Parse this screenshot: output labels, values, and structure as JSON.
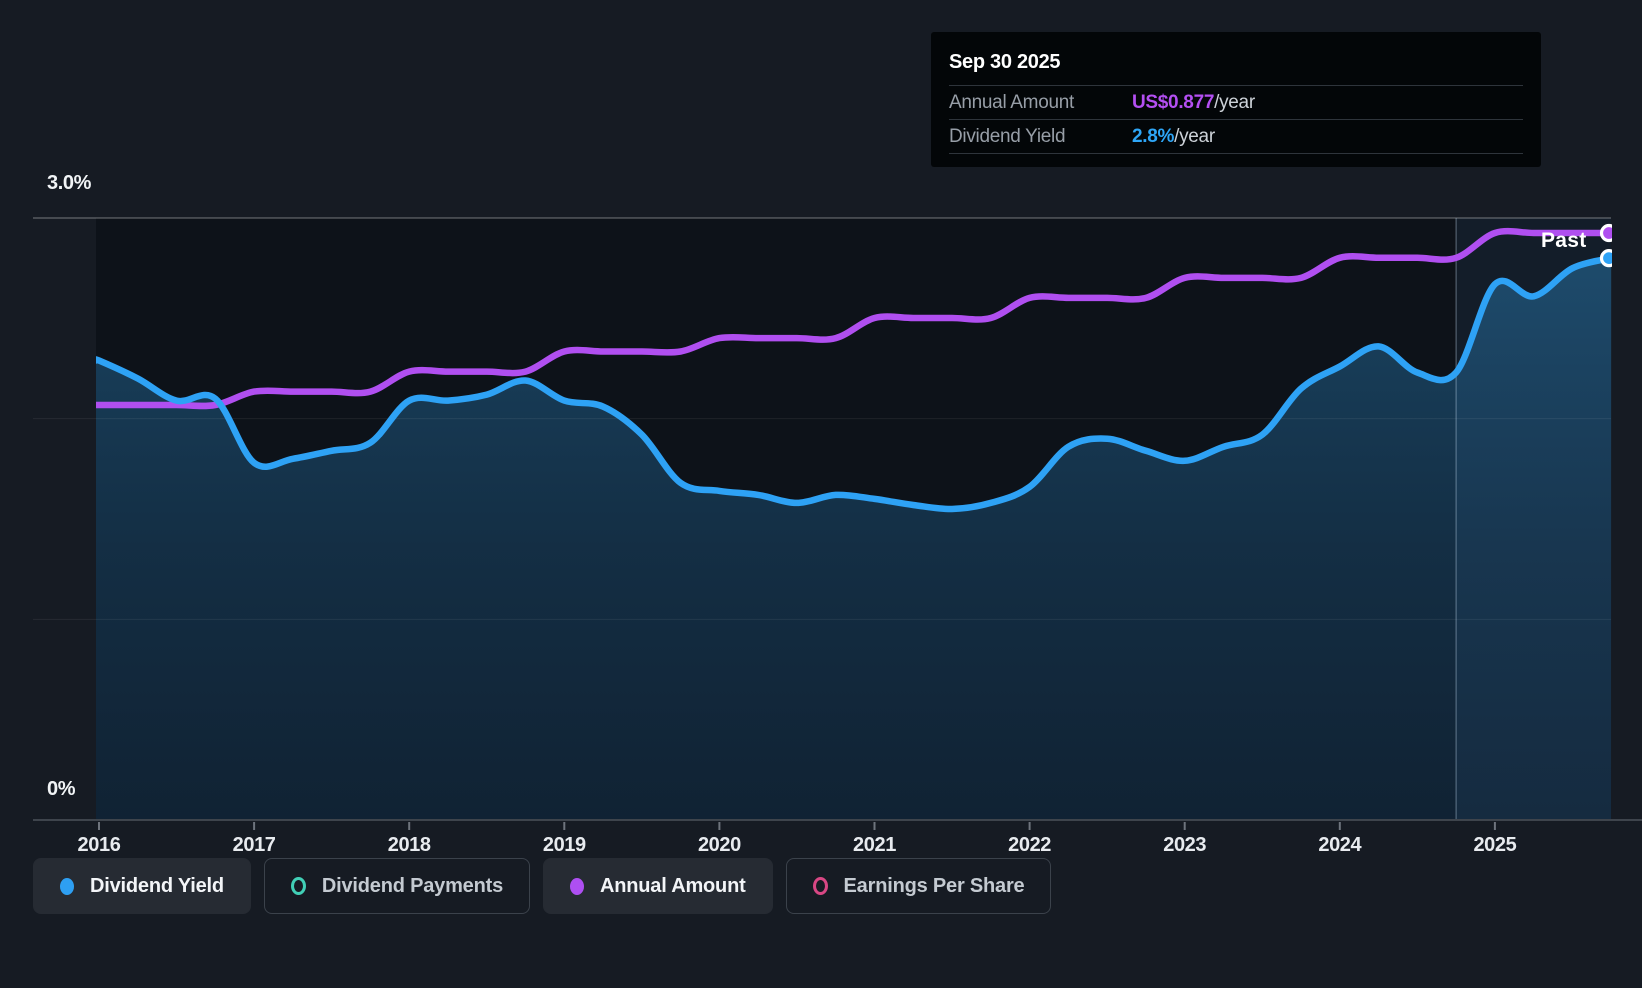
{
  "y_axis": {
    "top_label": "3.0%",
    "bottom_label": "0%"
  },
  "x_axis": {
    "years": [
      "2016",
      "2017",
      "2018",
      "2019",
      "2020",
      "2021",
      "2022",
      "2023",
      "2024",
      "2025"
    ]
  },
  "past_label": "Past",
  "tooltip": {
    "date": "Sep 30 2025",
    "rows": [
      {
        "label": "Annual Amount",
        "value": "US$0.877",
        "suffix": "/year",
        "value_color": "#b44ff2"
      },
      {
        "label": "Dividend Yield",
        "value": "2.8%",
        "suffix": "/year",
        "value_color": "#2ea6f7"
      }
    ]
  },
  "legend": [
    {
      "label": "Dividend Yield",
      "color": "#2e9ff2",
      "swatch": "filled",
      "active": true
    },
    {
      "label": "Dividend Payments",
      "color": "#41cfb6",
      "swatch": "outline",
      "active": false
    },
    {
      "label": "Annual Amount",
      "color": "#ae4ff2",
      "swatch": "filled",
      "active": true
    },
    {
      "label": "Earnings Per Share",
      "color": "#d84784",
      "swatch": "outline",
      "active": false
    }
  ],
  "colors": {
    "page_bg": "#161b23",
    "plot_bg": "#0d1219",
    "yield_line": "#2ea2f5",
    "amount_line": "#b04ff0",
    "grid_major": "rgba(255,255,255,0.28)",
    "grid_minor": "rgba(255,255,255,0.07)",
    "axis_line": "#3e444c",
    "tick": "#6e747d",
    "crosshair": "rgba(195,218,238,0.30)",
    "highlight_fill": "rgba(108,170,233,0.08)",
    "area_top": "rgba(47,150,216,0.40)",
    "area_mid": "rgba(36,118,178,0.28)",
    "area_bottom": "rgba(28,92,145,0.22)"
  },
  "chart_data": {
    "type": "line",
    "x_unit": "year (quarterly samples)",
    "x": [
      2016.0,
      2016.25,
      2016.5,
      2016.75,
      2017.0,
      2017.25,
      2017.5,
      2017.75,
      2018.0,
      2018.25,
      2018.5,
      2018.75,
      2019.0,
      2019.25,
      2019.5,
      2019.75,
      2020.0,
      2020.25,
      2020.5,
      2020.75,
      2021.0,
      2021.25,
      2021.5,
      2021.75,
      2022.0,
      2022.25,
      2022.5,
      2022.75,
      2023.0,
      2023.25,
      2023.5,
      2023.75,
      2024.0,
      2024.25,
      2024.5,
      2024.75,
      2025.0,
      2025.25,
      2025.5,
      2025.75
    ],
    "series": [
      {
        "name": "Dividend Yield",
        "unit": "percent",
        "color": "#2ea2f5",
        "values": [
          2.29,
          2.2,
          2.09,
          2.1,
          1.78,
          1.8,
          1.84,
          1.88,
          2.09,
          2.09,
          2.12,
          2.19,
          2.09,
          2.06,
          1.92,
          1.68,
          1.64,
          1.62,
          1.58,
          1.62,
          1.6,
          1.57,
          1.55,
          1.58,
          1.66,
          1.86,
          1.9,
          1.84,
          1.79,
          1.86,
          1.92,
          2.15,
          2.26,
          2.36,
          2.23,
          2.23,
          2.67,
          2.61,
          2.75,
          2.8
        ]
      },
      {
        "name": "Annual Amount",
        "unit": "US$/year",
        "color": "#b04ff0",
        "values": [
          0.62,
          0.62,
          0.62,
          0.62,
          0.64,
          0.64,
          0.64,
          0.64,
          0.67,
          0.67,
          0.67,
          0.67,
          0.7,
          0.7,
          0.7,
          0.7,
          0.72,
          0.72,
          0.72,
          0.72,
          0.75,
          0.75,
          0.75,
          0.75,
          0.78,
          0.78,
          0.78,
          0.78,
          0.81,
          0.81,
          0.81,
          0.81,
          0.84,
          0.84,
          0.84,
          0.84,
          0.877,
          0.877,
          0.877,
          0.877
        ]
      }
    ],
    "ylim_percent": [
      0,
      3.0
    ],
    "gridlines_percent": [
      3.0,
      2.0,
      1.0,
      0.0
    ],
    "highlight_region": {
      "from": 2024.75,
      "to": 2025.75
    },
    "end_labels": {
      "date": "Sep 30 2025",
      "dividend_yield": "2.8%",
      "annual_amount": "US$0.877"
    },
    "legend_position": "bottom"
  }
}
